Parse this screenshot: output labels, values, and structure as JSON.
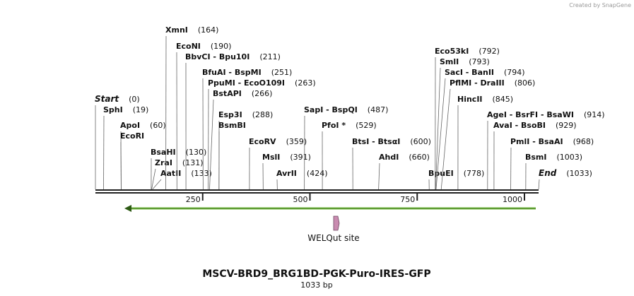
{
  "watermark": "Created by SnapGene",
  "enzymes": [
    {
      "name": "Start",
      "site": "(0)"
    },
    {
      "name": "SphI",
      "site": "(19)"
    },
    {
      "name": "ApoI",
      "site": "(60)"
    },
    {
      "name": "EcoRI"
    },
    {
      "name": "BsaHI",
      "site": "(130)"
    },
    {
      "name": "ZraI",
      "site": "(131)"
    },
    {
      "name": "AatII",
      "site": "(133)"
    },
    {
      "name": "XmnI",
      "site": "(164)"
    },
    {
      "name": "EcoNI",
      "site": "(190)"
    },
    {
      "name": "BbvCI  - Bpu10I",
      "site": "(211)"
    },
    {
      "name": "BfuAI  - BspMI",
      "site": "(251)"
    },
    {
      "name": "PpuMI  - EcoO109I",
      "site": "(263)"
    },
    {
      "name": "BstAPI",
      "site": "(266)"
    },
    {
      "name": "Esp3I",
      "site": "(288)"
    },
    {
      "name": "BsmBI"
    },
    {
      "name": "EcoRV",
      "site": "(359)"
    },
    {
      "name": "MslI",
      "site": "(391)"
    },
    {
      "name": "AvrII",
      "site": "(424)"
    },
    {
      "name": "SapI  - BspQI",
      "site": "(487)"
    },
    {
      "name": "PfoI *",
      "site": "(529)"
    },
    {
      "name": "BtsI  - BtsαI",
      "site": "(600)"
    },
    {
      "name": "AhdI",
      "site": "(660)"
    },
    {
      "name": "BpuEI",
      "site": "(778)"
    },
    {
      "name": "Eco53kI",
      "site": "(792)"
    },
    {
      "name": "SmlI",
      "site": "(793)"
    },
    {
      "name": "SacI  - BanII",
      "site": "(794)"
    },
    {
      "name": "PflMI  - DraIII",
      "site": "(806)"
    },
    {
      "name": "HincII",
      "site": "(845)"
    },
    {
      "name": "AgeI  - BsrFI  - BsaWI",
      "site": "(914)"
    },
    {
      "name": "AvaI  - BsoBI",
      "site": "(929)"
    },
    {
      "name": "PmlI  - BsaAI",
      "site": "(968)"
    },
    {
      "name": "BsmI",
      "site": "(1003)"
    },
    {
      "name": "End",
      "site": "(1033)"
    }
  ],
  "ruler": {
    "ticks": [
      250,
      500,
      750,
      1000
    ]
  },
  "feature": {
    "label": "WELQut site"
  },
  "title": "MSCV-BRD9_BRG1BD-PGK-Puro-IRES-GFP",
  "length": "1033 bp"
}
